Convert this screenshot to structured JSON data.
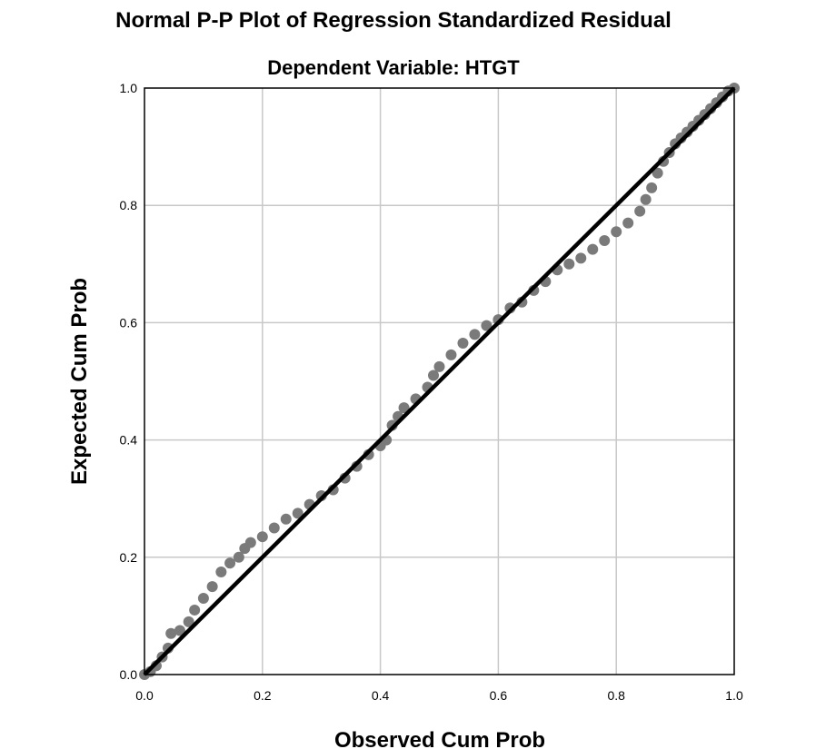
{
  "chart_data": {
    "type": "scatter",
    "title": "Normal P-P Plot of Regression Standardized Residual",
    "subtitle": "Dependent Variable: HTGT",
    "xlabel": "Observed Cum Prob",
    "ylabel": "Expected Cum Prob",
    "xlim": [
      0.0,
      1.0
    ],
    "ylim": [
      0.0,
      1.0
    ],
    "xticks": [
      "0.0",
      "0.2",
      "0.4",
      "0.6",
      "0.8",
      "1.0"
    ],
    "yticks": [
      "0.0",
      "0.2",
      "0.4",
      "0.6",
      "0.8",
      "1.0"
    ],
    "grid": true,
    "reference_line": {
      "from": [
        0.0,
        0.0
      ],
      "to": [
        1.0,
        1.0
      ],
      "color": "#000000"
    },
    "point_color": "#7a7a7a",
    "series": [
      {
        "points": [
          [
            0.0,
            0.0
          ],
          [
            0.01,
            0.005
          ],
          [
            0.02,
            0.015
          ],
          [
            0.03,
            0.03
          ],
          [
            0.04,
            0.045
          ],
          [
            0.045,
            0.07
          ],
          [
            0.06,
            0.075
          ],
          [
            0.075,
            0.09
          ],
          [
            0.085,
            0.11
          ],
          [
            0.1,
            0.13
          ],
          [
            0.115,
            0.15
          ],
          [
            0.13,
            0.175
          ],
          [
            0.145,
            0.19
          ],
          [
            0.16,
            0.2
          ],
          [
            0.17,
            0.215
          ],
          [
            0.18,
            0.225
          ],
          [
            0.2,
            0.235
          ],
          [
            0.22,
            0.25
          ],
          [
            0.24,
            0.265
          ],
          [
            0.26,
            0.275
          ],
          [
            0.28,
            0.29
          ],
          [
            0.3,
            0.305
          ],
          [
            0.32,
            0.315
          ],
          [
            0.34,
            0.335
          ],
          [
            0.36,
            0.355
          ],
          [
            0.38,
            0.375
          ],
          [
            0.4,
            0.39
          ],
          [
            0.41,
            0.4
          ],
          [
            0.42,
            0.425
          ],
          [
            0.43,
            0.44
          ],
          [
            0.44,
            0.455
          ],
          [
            0.46,
            0.47
          ],
          [
            0.48,
            0.49
          ],
          [
            0.49,
            0.51
          ],
          [
            0.5,
            0.525
          ],
          [
            0.52,
            0.545
          ],
          [
            0.54,
            0.565
          ],
          [
            0.56,
            0.58
          ],
          [
            0.58,
            0.595
          ],
          [
            0.6,
            0.605
          ],
          [
            0.62,
            0.625
          ],
          [
            0.64,
            0.635
          ],
          [
            0.66,
            0.655
          ],
          [
            0.68,
            0.67
          ],
          [
            0.7,
            0.69
          ],
          [
            0.72,
            0.7
          ],
          [
            0.74,
            0.71
          ],
          [
            0.76,
            0.725
          ],
          [
            0.78,
            0.74
          ],
          [
            0.8,
            0.755
          ],
          [
            0.82,
            0.77
          ],
          [
            0.84,
            0.79
          ],
          [
            0.85,
            0.81
          ],
          [
            0.86,
            0.83
          ],
          [
            0.87,
            0.855
          ],
          [
            0.88,
            0.875
          ],
          [
            0.89,
            0.89
          ],
          [
            0.9,
            0.905
          ],
          [
            0.91,
            0.915
          ],
          [
            0.92,
            0.925
          ],
          [
            0.93,
            0.935
          ],
          [
            0.94,
            0.945
          ],
          [
            0.95,
            0.955
          ],
          [
            0.96,
            0.965
          ],
          [
            0.97,
            0.975
          ],
          [
            0.98,
            0.985
          ],
          [
            0.99,
            0.995
          ],
          [
            1.0,
            1.0
          ]
        ]
      }
    ]
  }
}
